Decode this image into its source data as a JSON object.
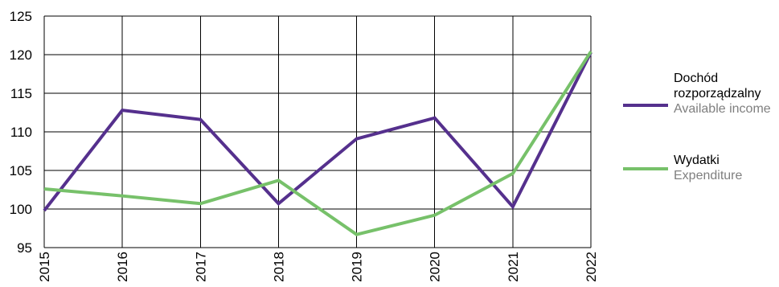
{
  "chart_data": {
    "type": "line",
    "title": "",
    "xlabel": "",
    "ylabel": "",
    "x": [
      "2015",
      "2016",
      "2017",
      "2018",
      "2019",
      "2020",
      "2021",
      "2022"
    ],
    "ylim": [
      95,
      125
    ],
    "yticks": [
      95,
      100,
      105,
      110,
      115,
      120,
      125
    ],
    "grid": true,
    "legend_position": "right",
    "series": [
      {
        "name": "Dochód rozporządzalny",
        "name_en": "Available income",
        "color": "#55308d",
        "values": [
          99.8,
          112.8,
          111.6,
          100.7,
          109.1,
          111.8,
          100.3,
          120.3
        ]
      },
      {
        "name": "Wydatki",
        "name_en": "Expenditure",
        "color": "#77c16a",
        "values": [
          102.6,
          101.7,
          100.7,
          103.7,
          96.7,
          99.2,
          104.6,
          120.4
        ]
      }
    ]
  }
}
